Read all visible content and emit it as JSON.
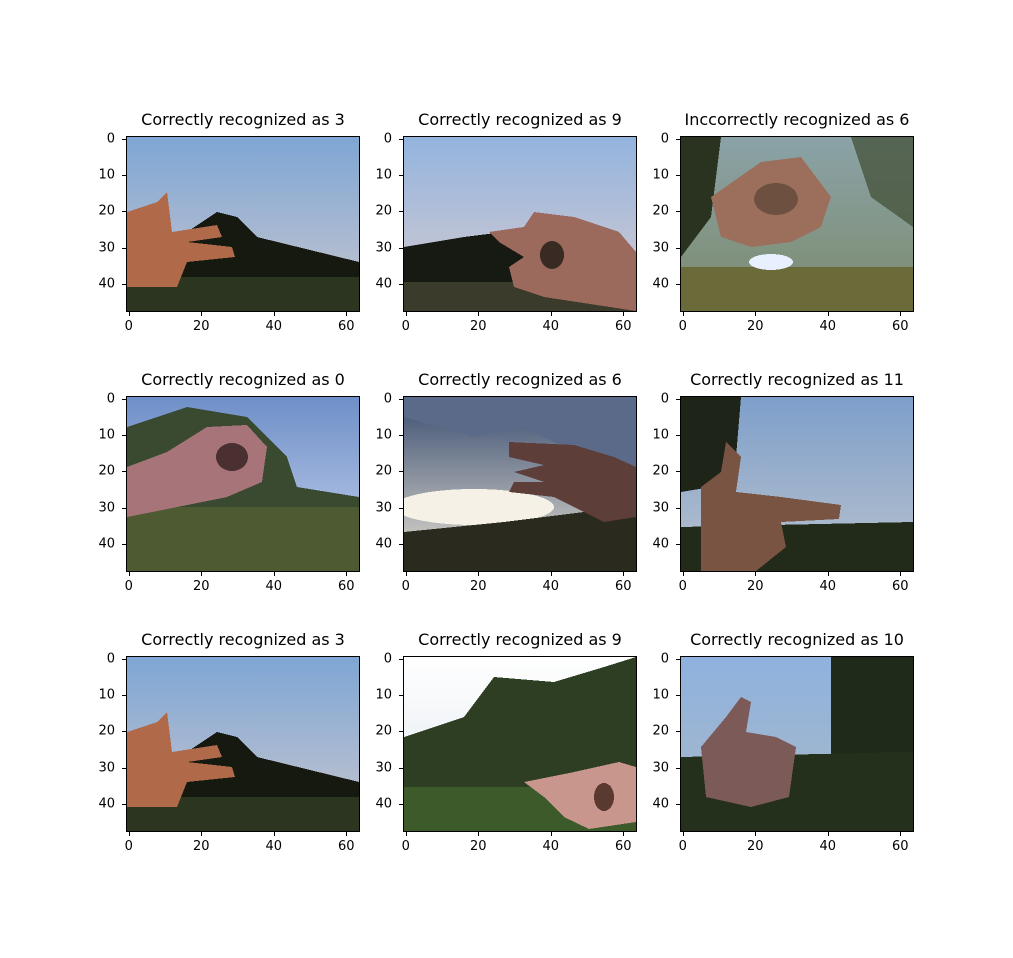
{
  "figure": {
    "panels": [
      {
        "title": "Correctly recognized as 3",
        "scene": "sky-hand-three"
      },
      {
        "title": "Correctly recognized as 9",
        "scene": "sky-hand-nine"
      },
      {
        "title": "Inccorrectly recognized as 6",
        "scene": "tree-hand-blur"
      },
      {
        "title": "Correctly recognized as 0",
        "scene": "sky-hand-zero"
      },
      {
        "title": "Correctly recognized as 6",
        "scene": "sunset-hand-six"
      },
      {
        "title": "Correctly recognized as 11",
        "scene": "sky-hand-eleven"
      },
      {
        "title": "Correctly recognized as 3",
        "scene": "sky-hand-three"
      },
      {
        "title": "Correctly recognized as 9",
        "scene": "tree-hand-nine"
      },
      {
        "title": "Correctly recognized as 10",
        "scene": "tree-thumbs-up"
      }
    ],
    "y_ticks": [
      "0",
      "10",
      "20",
      "30",
      "40"
    ],
    "x_ticks": [
      "0",
      "20",
      "40",
      "60"
    ],
    "colors": {
      "sky": "#8fb3d8",
      "skin": "#a06a55",
      "ground": "#2e3a22",
      "tree": "#1f2a1a"
    }
  }
}
